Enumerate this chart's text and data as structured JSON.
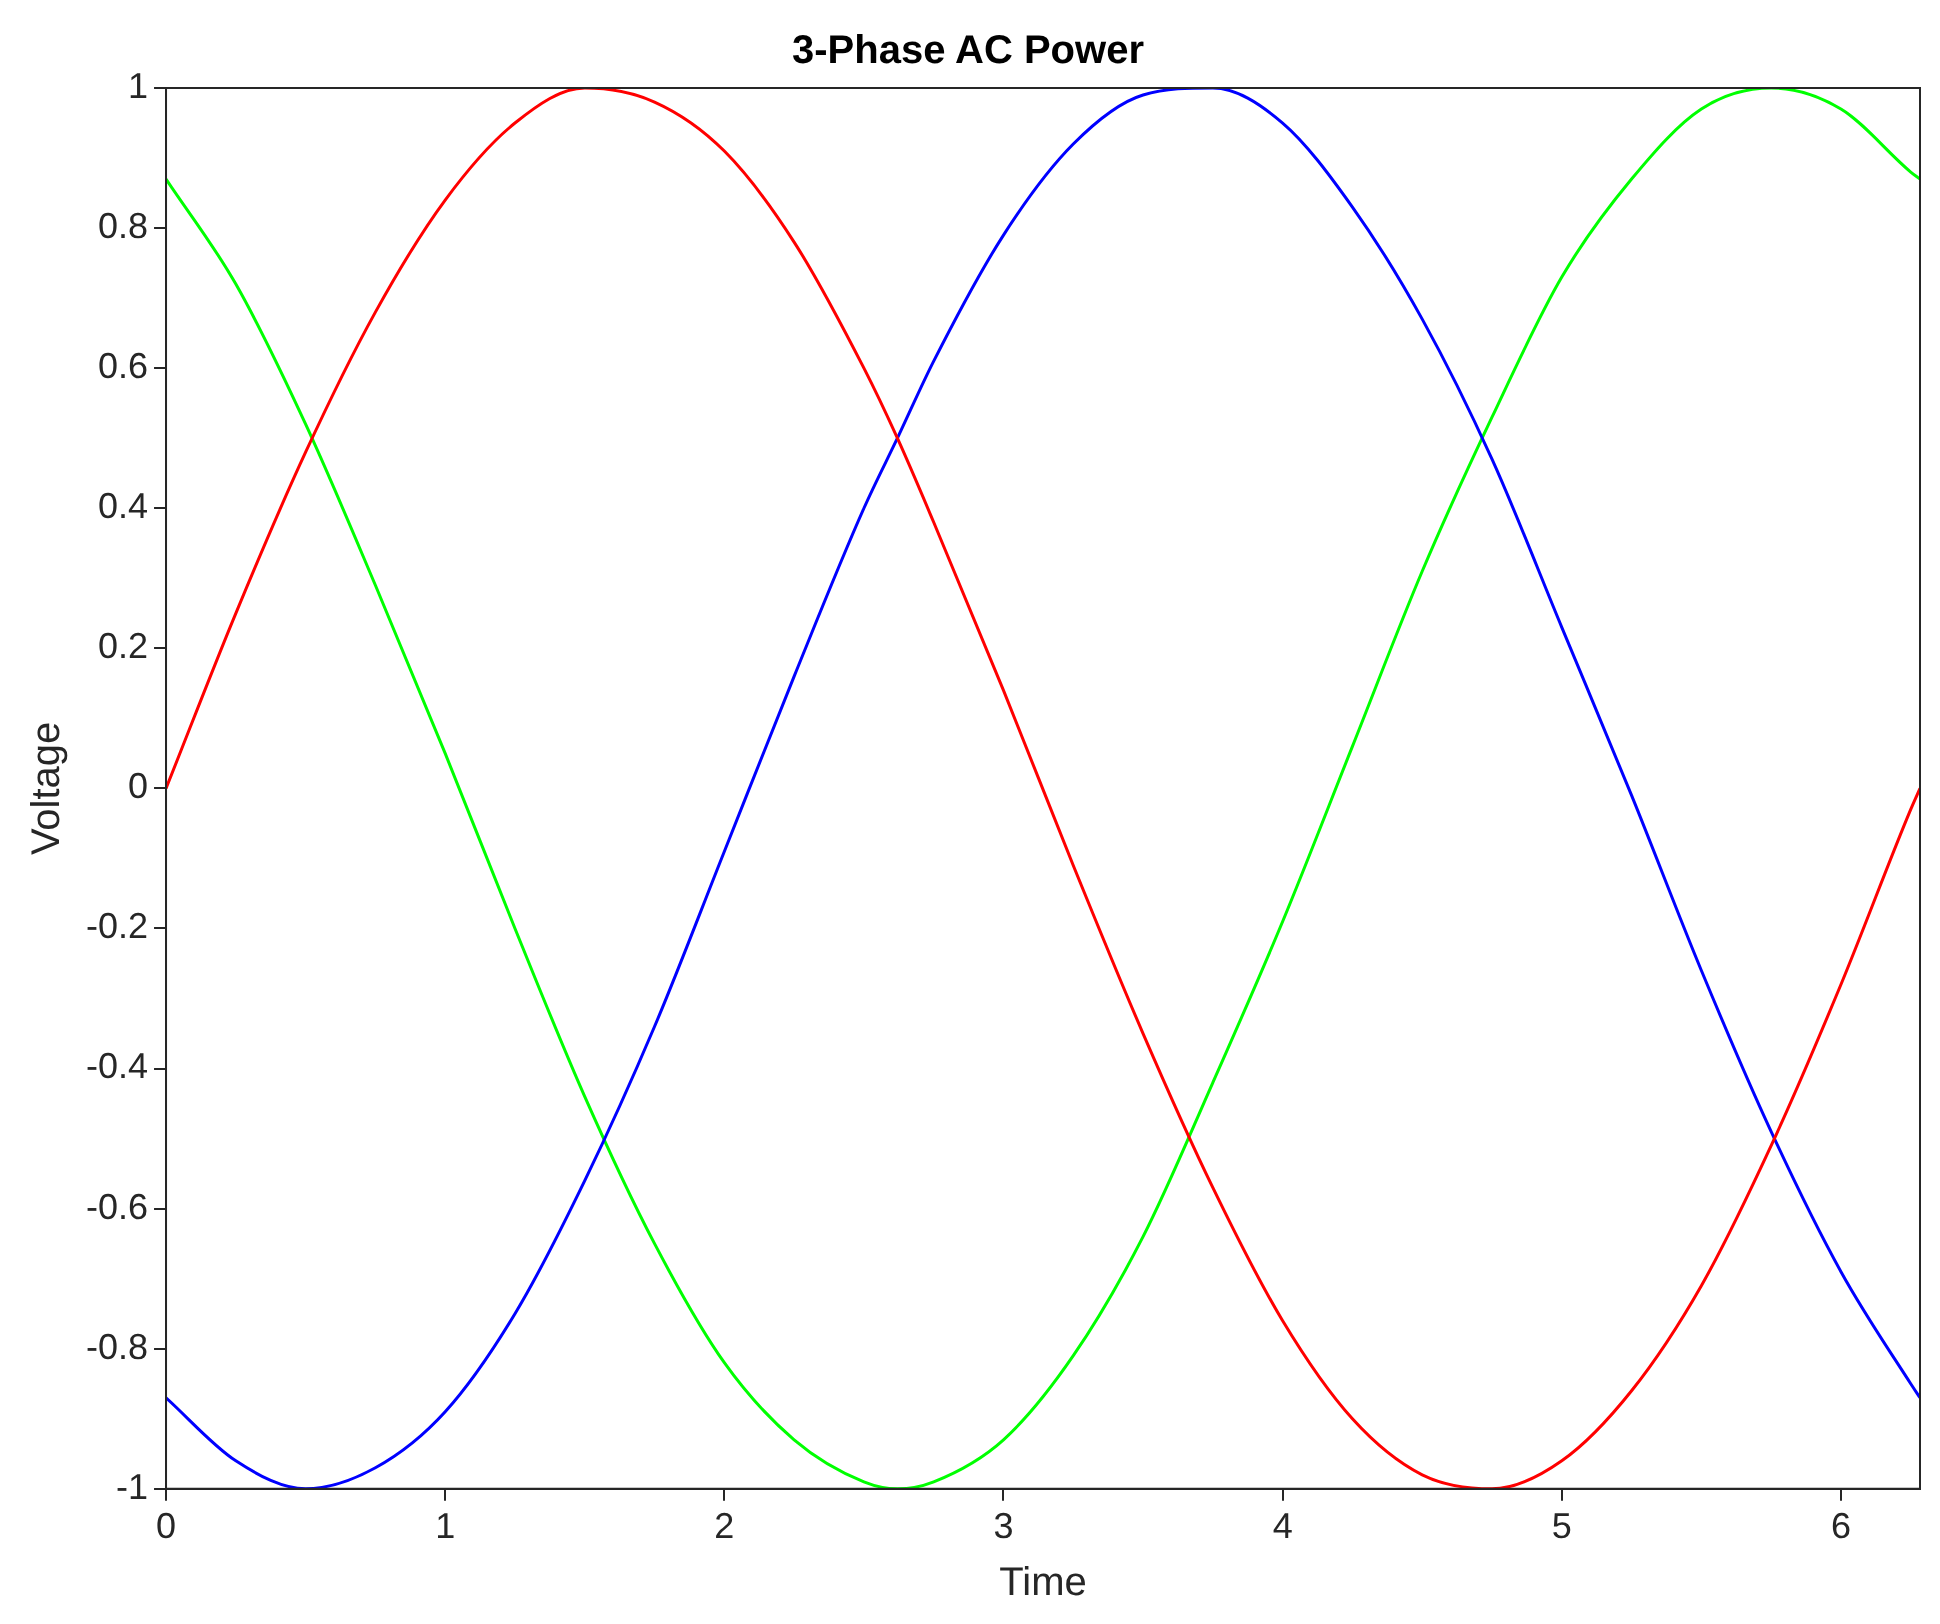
{
  "chart_data": {
    "type": "line",
    "title": "3-Phase AC Power",
    "xlabel": "Time",
    "ylabel": "Voltage",
    "x": [
      0,
      0.25,
      0.5,
      0.75,
      1.0,
      1.25,
      1.5,
      1.75,
      2.0,
      2.25,
      2.5,
      2.62,
      2.75,
      3.0,
      3.25,
      3.5,
      3.75,
      4.0,
      4.25,
      4.5,
      4.75,
      5.0,
      5.25,
      5.5,
      5.75,
      6.0,
      6.25,
      6.2832
    ],
    "series": [
      {
        "color": "#ff0000",
        "values": [
          0,
          0.25,
          0.48,
          0.68,
          0.84,
          0.95,
          1.0,
          0.98,
          0.91,
          0.78,
          0.6,
          0.5,
          0.38,
          0.14,
          -0.11,
          -0.35,
          -0.57,
          -0.76,
          -0.9,
          -0.98,
          -1.0,
          -0.96,
          -0.86,
          -0.71,
          -0.51,
          -0.28,
          -0.03,
          0
        ]
      },
      {
        "color": "#0000ff",
        "values": [
          -0.87,
          -0.96,
          -1.0,
          -0.97,
          -0.89,
          -0.75,
          -0.56,
          -0.34,
          -0.09,
          0.16,
          0.4,
          0.5,
          0.61,
          0.79,
          0.92,
          0.99,
          1.0,
          0.95,
          0.83,
          0.67,
          0.47,
          0.23,
          -0.01,
          -0.26,
          -0.49,
          -0.69,
          -0.85,
          -0.87
        ]
      },
      {
        "color": "#00ff00",
        "values": [
          0.87,
          0.72,
          0.52,
          0.29,
          0.05,
          -0.2,
          -0.44,
          -0.65,
          -0.82,
          -0.93,
          -0.99,
          -1.0,
          -0.99,
          -0.93,
          -0.81,
          -0.64,
          -0.42,
          -0.19,
          0.06,
          0.31,
          0.53,
          0.73,
          0.87,
          0.97,
          1.0,
          0.97,
          0.88,
          0.87
        ]
      }
    ],
    "xlim": [
      0,
      6.2832
    ],
    "xticks": [
      0,
      1,
      2,
      3,
      4,
      5,
      6
    ],
    "ylim": [
      -1,
      1
    ],
    "yticks": [
      -1,
      -0.8,
      -0.6,
      -0.4,
      -0.2,
      0,
      0.2,
      0.4,
      0.6,
      0.8,
      1
    ],
    "grid": false,
    "legend": false,
    "marker": "none",
    "line_style": "solid"
  }
}
